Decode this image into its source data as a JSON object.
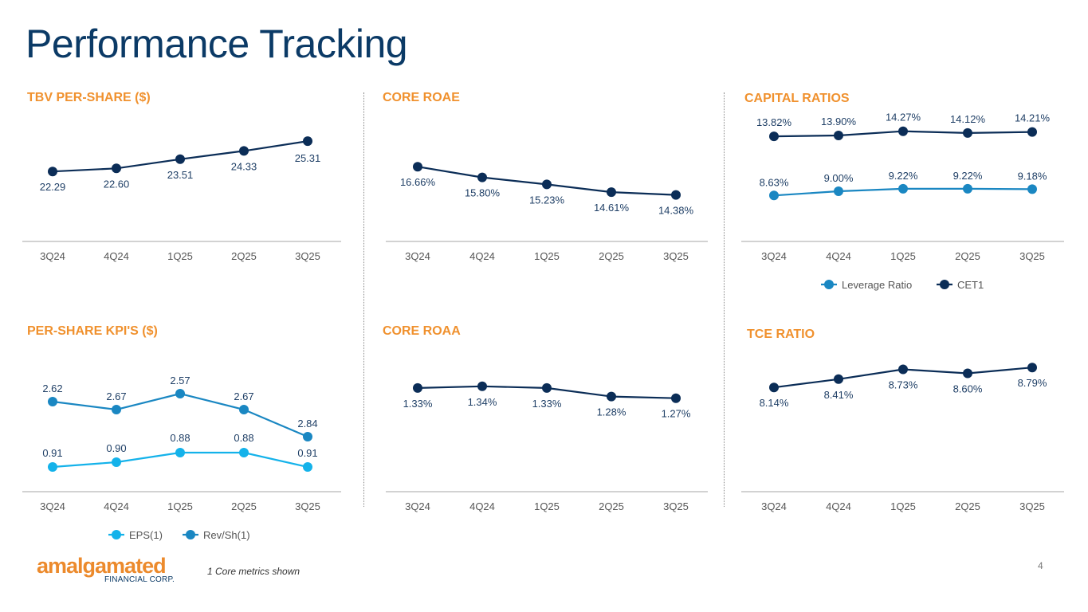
{
  "slide": {
    "title": "Performance Tracking",
    "footnote": "1 Core metrics shown",
    "page_number": "4",
    "logo_main": "amalgamated",
    "logo_sub": "FINANCIAL CORP."
  },
  "colors": {
    "title": "#0b3a66",
    "panel_title": "#f0912e",
    "navy": "#0b2d57",
    "blue": "#1a87c2",
    "light_blue": "#14b2ea",
    "axis": "#a6a6a6",
    "tick": "#555555"
  },
  "chart_data": [
    {
      "id": "tbv",
      "type": "line",
      "title": "TBV PER-SHARE ($)",
      "categories": [
        "3Q24",
        "4Q24",
        "1Q25",
        "2Q25",
        "3Q25"
      ],
      "series": [
        {
          "name": "TBV",
          "color": "#0b2d57",
          "values": [
            22.29,
            22.6,
            23.51,
            24.33,
            25.31
          ],
          "labels": [
            "22.29",
            "22.60",
            "23.51",
            "24.33",
            "25.31"
          ],
          "label_pos": "below"
        }
      ],
      "ylim": [
        19.7,
        26.5
      ],
      "legend": null
    },
    {
      "id": "roae",
      "type": "line",
      "title": "CORE ROAE",
      "categories": [
        "3Q24",
        "4Q24",
        "1Q25",
        "2Q25",
        "3Q25"
      ],
      "series": [
        {
          "name": "Core ROAE",
          "color": "#0b2d57",
          "values": [
            16.66,
            15.8,
            15.23,
            14.61,
            14.38
          ],
          "labels": [
            "16.66%",
            "15.80%",
            "15.23%",
            "14.61%",
            "14.38%"
          ],
          "label_pos": "below"
        }
      ],
      "ylim": [
        12.1,
        17.9
      ],
      "legend": null
    },
    {
      "id": "capital",
      "type": "line",
      "title": "CAPITAL RATIOS",
      "categories": [
        "3Q24",
        "4Q24",
        "1Q25",
        "2Q25",
        "3Q25"
      ],
      "series": [
        {
          "name": "Leverage Ratio",
          "color": "#1a87c2",
          "values": [
            8.63,
            9.0,
            9.22,
            9.22,
            9.18
          ],
          "labels": [
            "8.63%",
            "9.00%",
            "9.22%",
            "9.22%",
            "9.18%"
          ],
          "label_pos": "above"
        },
        {
          "name": "CET1",
          "color": "#0b2d57",
          "values": [
            13.82,
            13.9,
            14.27,
            14.12,
            14.21
          ],
          "labels": [
            "13.82%",
            "13.90%",
            "14.27%",
            "14.12%",
            "14.21%"
          ],
          "label_pos": "above"
        }
      ],
      "ylim": [
        6.2,
        16.0
      ],
      "legend": [
        "Leverage Ratio",
        "CET1"
      ]
    },
    {
      "id": "kpi",
      "type": "line",
      "title": "PER-SHARE KPI'S ($)",
      "categories": [
        "3Q24",
        "4Q24",
        "1Q25",
        "2Q25",
        "3Q25"
      ],
      "series": [
        {
          "name": "EPS(1)",
          "color": "#14b2ea",
          "values": [
            0.91,
            0.9,
            0.88,
            0.88,
            0.91
          ],
          "labels": [
            "0.91",
            "0.90",
            "0.88",
            "0.88",
            "0.91"
          ],
          "label_pos": "mixed"
        },
        {
          "name": "Rev/Sh(1)",
          "color": "#1a87c2",
          "values": [
            2.62,
            2.67,
            2.57,
            2.67,
            2.84
          ],
          "labels": [
            "2.62",
            "2.67",
            "2.57",
            "2.67",
            "2.84"
          ],
          "label_pos": "above"
        }
      ],
      "legend": [
        "EPS(1)",
        "Rev/Sh(1)"
      ]
    },
    {
      "id": "roaa",
      "type": "line",
      "title": "CORE ROAA",
      "categories": [
        "3Q24",
        "4Q24",
        "1Q25",
        "2Q25",
        "3Q25"
      ],
      "series": [
        {
          "name": "Core ROAA",
          "color": "#0b2d57",
          "values": [
            1.33,
            1.34,
            1.33,
            1.28,
            1.27
          ],
          "labels": [
            "1.33%",
            "1.34%",
            "1.33%",
            "1.28%",
            "1.27%"
          ],
          "label_pos": "below"
        }
      ],
      "ylim": [
        0.8,
        1.55
      ],
      "legend": null
    },
    {
      "id": "tce",
      "type": "line",
      "title": "TCE RATIO",
      "categories": [
        "3Q24",
        "4Q24",
        "1Q25",
        "2Q25",
        "3Q25"
      ],
      "series": [
        {
          "name": "TCE Ratio",
          "color": "#0b2d57",
          "values": [
            8.14,
            8.41,
            8.73,
            8.6,
            8.79
          ],
          "labels": [
            "8.14%",
            "8.41%",
            "8.73%",
            "8.60%",
            "8.79%"
          ],
          "label_pos": "below"
        }
      ],
      "ylim": [
        5.7,
        9.6
      ],
      "legend": null
    }
  ]
}
